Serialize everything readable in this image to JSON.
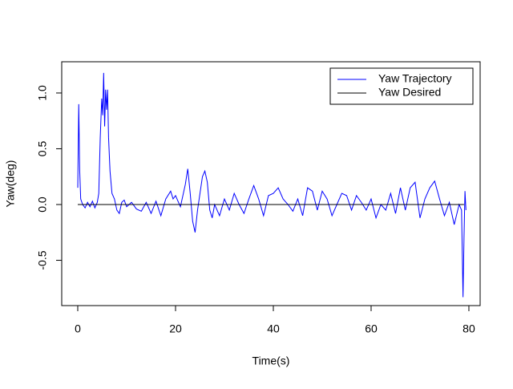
{
  "chart_data": {
    "type": "line",
    "xlabel": "Time(s)",
    "ylabel": "Yaw(deg)",
    "xlim": [
      -3.28,
      82.3
    ],
    "ylim": [
      -0.906,
      1.28
    ],
    "xticks": [
      0,
      20,
      40,
      60,
      80
    ],
    "yticks": [
      -0.5,
      {
        "value": 0,
        "label": "0.0"
      },
      0.5,
      {
        "value": 1,
        "label": "1.0"
      }
    ],
    "legend": "top-right",
    "series": [
      {
        "name": "Yaw Trajectory",
        "color": "#0000ff",
        "x": [
          0,
          0.2,
          0.4,
          0.6,
          1,
          1.5,
          2,
          2.5,
          3,
          3.5,
          4,
          4.3,
          4.6,
          4.9,
          5.1,
          5.3,
          5.5,
          5.7,
          5.9,
          6.1,
          6.3,
          6.6,
          7,
          7.5,
          8,
          8.5,
          9,
          9.5,
          10,
          11,
          12,
          13,
          14,
          15,
          16,
          17,
          18,
          19,
          19.5,
          20,
          21,
          22,
          22.5,
          23,
          23.5,
          24,
          24.5,
          25,
          25.5,
          26,
          26.5,
          27,
          27.5,
          28,
          29,
          30,
          31,
          32,
          33,
          34,
          35,
          36,
          37,
          38,
          39,
          40,
          41,
          42,
          43,
          44,
          45,
          46,
          47,
          48,
          49,
          50,
          51,
          52,
          53,
          54,
          55,
          56,
          57,
          58,
          59,
          60,
          61,
          62,
          63,
          64,
          65,
          66,
          67,
          68,
          69,
          70,
          71,
          72,
          73,
          74,
          75,
          76,
          77,
          78,
          78.5,
          78.8,
          79,
          79.2,
          79.4
        ],
        "values": [
          0.15,
          0.9,
          0.3,
          0.05,
          0,
          -0.03,
          0.02,
          -0.02,
          0.03,
          -0.03,
          0.02,
          0.1,
          0.6,
          0.95,
          0.8,
          1.18,
          0.7,
          1.03,
          0.85,
          1.03,
          0.6,
          0.3,
          0.1,
          0.05,
          -0.05,
          -0.08,
          0.02,
          0.04,
          -0.02,
          0.02,
          -0.04,
          -0.06,
          0.02,
          -0.08,
          0.03,
          -0.1,
          0.05,
          0.12,
          0.05,
          0.08,
          -0.02,
          0.18,
          0.32,
          0.1,
          -0.15,
          -0.25,
          -0.05,
          0.1,
          0.25,
          0.3,
          0.2,
          -0.05,
          -0.12,
          0,
          -0.1,
          0.05,
          -0.05,
          0.1,
          0,
          -0.08,
          0.05,
          0.17,
          0.05,
          -0.1,
          0.08,
          0.1,
          0.15,
          0.05,
          0,
          -0.06,
          0.05,
          -0.1,
          0.15,
          0.12,
          -0.05,
          0.12,
          0.05,
          -0.1,
          0,
          0.1,
          0.08,
          -0.05,
          0.08,
          0.02,
          -0.05,
          0.05,
          -0.12,
          0,
          -0.05,
          0.1,
          -0.08,
          0.15,
          -0.05,
          0.15,
          0.2,
          -0.12,
          0.05,
          0.15,
          0.21,
          0.05,
          -0.1,
          0.02,
          -0.18,
          0,
          -0.05,
          -0.83,
          -0.3,
          0.12,
          -0.05
        ]
      },
      {
        "name": "Yaw Desired",
        "color": "#000000",
        "x": [
          0,
          79
        ],
        "values": [
          0,
          0
        ]
      }
    ]
  }
}
